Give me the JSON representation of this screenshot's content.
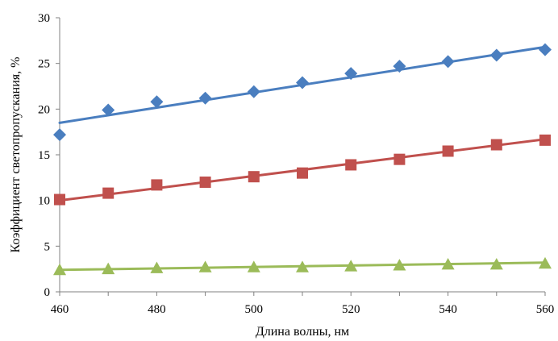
{
  "chart_data": {
    "type": "scatter",
    "title": "",
    "xlabel": "Длина волны, нм",
    "ylabel": "Коэффициент светопропускания, %",
    "xlim": [
      460,
      560
    ],
    "ylim": [
      0,
      30
    ],
    "x_ticks": [
      "460",
      "480",
      "500",
      "520",
      "540",
      "560"
    ],
    "y_ticks": [
      "0",
      "5",
      "10",
      "15",
      "20",
      "25",
      "30"
    ],
    "grid": false,
    "legend": "none",
    "x": [
      460,
      470,
      480,
      490,
      500,
      510,
      520,
      530,
      540,
      550,
      560
    ],
    "series": [
      {
        "marker": "diamond",
        "color": "#4a7ebf",
        "values": [
          17.2,
          19.9,
          20.8,
          21.2,
          21.9,
          22.9,
          23.9,
          24.7,
          25.2,
          25.9,
          26.5
        ],
        "trendline": {
          "type": "linear",
          "from": [
            460,
            18.5
          ],
          "to": [
            560,
            26.8
          ]
        }
      },
      {
        "marker": "square",
        "color": "#c0504d",
        "values": [
          10.1,
          10.8,
          11.7,
          12.0,
          12.6,
          13.0,
          13.9,
          14.5,
          15.4,
          16.1,
          16.6
        ],
        "trendline": {
          "type": "linear",
          "from": [
            460,
            10.0
          ],
          "to": [
            560,
            16.7
          ]
        }
      },
      {
        "marker": "triangle",
        "color": "#9bbb59",
        "values": [
          2.4,
          2.5,
          2.6,
          2.7,
          2.7,
          2.7,
          2.8,
          2.9,
          3.0,
          3.0,
          3.1
        ],
        "trendline": {
          "type": "linear",
          "from": [
            460,
            2.4
          ],
          "to": [
            560,
            3.2
          ]
        }
      }
    ]
  }
}
